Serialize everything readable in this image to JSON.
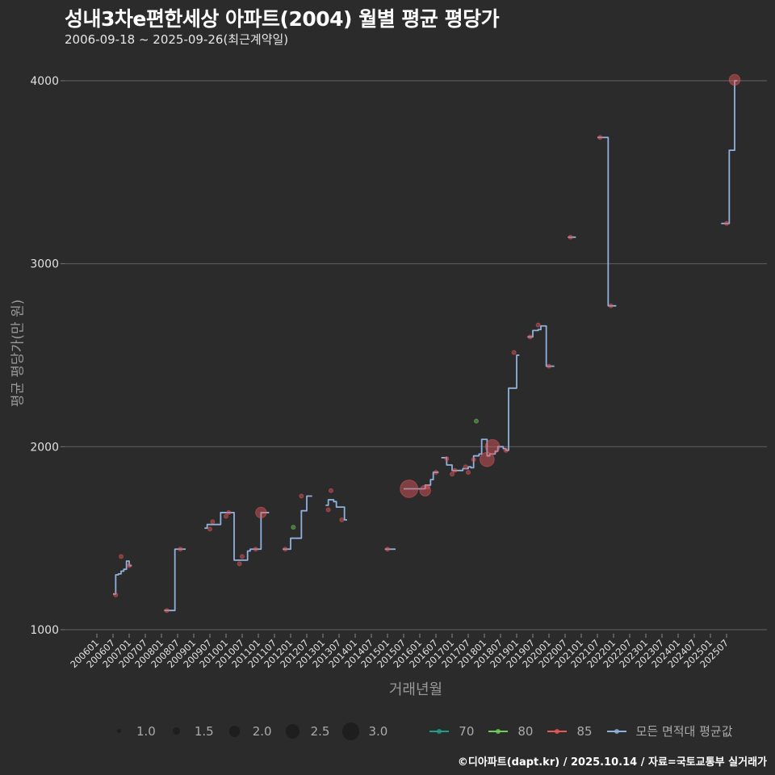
{
  "header": {
    "title": "성내3차e편한세상 아파트(2004) 월별 평균 평당가",
    "subtitle": "2006-09-18 ~ 2025-09-26(최근계약일)"
  },
  "footer": {
    "credit": "©디아파트(dapt.kr) / 2025.10.14 / 자료=국토교통부 실거래가"
  },
  "chart_data": {
    "type": "line",
    "title": "성내3차e편한세상 아파트(2004) 월별 평균 평당가",
    "subtitle": "2006-09-18 ~ 2025-09-26(최근계약일)",
    "xlabel": "거래년월",
    "ylabel": "평균 평당가(만 원)",
    "ylim": [
      1000,
      4000
    ],
    "yticks": [
      1000,
      2000,
      3000,
      4000
    ],
    "xticks": [
      "200601",
      "200607",
      "200701",
      "200707",
      "200801",
      "200807",
      "200901",
      "200907",
      "201001",
      "201007",
      "201101",
      "201107",
      "201201",
      "201207",
      "201301",
      "201307",
      "201401",
      "201407",
      "201501",
      "201507",
      "201601",
      "201607",
      "201701",
      "201707",
      "201801",
      "201807",
      "201901",
      "201907",
      "202001",
      "202007",
      "202101",
      "202107",
      "202201",
      "202207",
      "202301",
      "202307",
      "202401",
      "202407",
      "202501",
      "202507"
    ],
    "grid": "horizontal",
    "legend_position": "bottom",
    "size_legend": {
      "title": "",
      "values": [
        "1.0",
        "1.5",
        "2.0",
        "2.5",
        "3.0"
      ]
    },
    "color_legend": [
      {
        "name": "70",
        "color": "#1f9e89"
      },
      {
        "name": "80",
        "color": "#6ece58"
      },
      {
        "name": "85",
        "color": "#e8585a"
      },
      {
        "name": "모든 면적대 평균값",
        "color": "#8fb1dc"
      }
    ],
    "average_series": {
      "name": "모든 면적대 평균값",
      "segments": [
        [
          [
            6,
            1195
          ],
          [
            7,
            1300
          ],
          [
            8,
            1305
          ],
          [
            9,
            1320
          ],
          [
            10,
            1330
          ],
          [
            11,
            1375
          ],
          [
            12,
            1350
          ],
          [
            13,
            1350
          ]
        ],
        [
          [
            25,
            1105
          ],
          [
            28,
            1105
          ],
          [
            29,
            1440
          ],
          [
            33,
            1440
          ]
        ],
        [
          [
            40,
            1555
          ],
          [
            41,
            1575
          ],
          [
            43,
            1575
          ],
          [
            46,
            1640
          ],
          [
            49,
            1640
          ],
          [
            51,
            1380
          ],
          [
            54,
            1380
          ],
          [
            56,
            1430
          ],
          [
            57,
            1440
          ],
          [
            59,
            1440
          ],
          [
            61,
            1640
          ],
          [
            64,
            1640
          ]
        ],
        [
          [
            69,
            1440
          ],
          [
            71,
            1440
          ],
          [
            72,
            1500
          ],
          [
            75,
            1500
          ],
          [
            76,
            1650
          ],
          [
            77,
            1650
          ],
          [
            78,
            1730
          ],
          [
            80,
            1730
          ]
        ],
        [
          [
            85,
            1680
          ],
          [
            86,
            1710
          ],
          [
            88,
            1700
          ],
          [
            89,
            1670
          ],
          [
            91,
            1670
          ],
          [
            92,
            1600
          ],
          [
            93,
            1600
          ]
        ],
        [
          [
            107,
            1440
          ],
          [
            111,
            1440
          ]
        ],
        [
          [
            114,
            1770
          ],
          [
            121,
            1770
          ],
          [
            122,
            1790
          ],
          [
            124,
            1820
          ],
          [
            125,
            1860
          ],
          [
            127,
            1860
          ]
        ],
        [
          [
            128,
            1940
          ],
          [
            130,
            1900
          ],
          [
            132,
            1870
          ],
          [
            134,
            1870
          ],
          [
            136,
            1880
          ],
          [
            138,
            1890
          ],
          [
            139,
            1885
          ],
          [
            140,
            1950
          ],
          [
            142,
            1960
          ],
          [
            143,
            2040
          ],
          [
            145,
            1950
          ],
          [
            146,
            1960
          ],
          [
            148,
            1975
          ],
          [
            149,
            2000
          ],
          [
            151,
            1990
          ],
          [
            152,
            1980
          ],
          [
            153,
            2320
          ],
          [
            155,
            2320
          ],
          [
            156,
            2500
          ],
          [
            157,
            2500
          ]
        ],
        [
          [
            160,
            2600
          ],
          [
            162,
            2635
          ],
          [
            164,
            2640
          ],
          [
            165,
            2660
          ],
          [
            167,
            2440
          ],
          [
            170,
            2440
          ]
        ],
        [
          [
            175,
            3145
          ],
          [
            178,
            3145
          ]
        ],
        [
          [
            186,
            3690
          ],
          [
            189,
            3690
          ],
          [
            190,
            2770
          ],
          [
            193,
            2770
          ]
        ],
        [
          [
            232,
            3220
          ],
          [
            234,
            3220
          ],
          [
            235,
            3620
          ],
          [
            236,
            3620
          ],
          [
            237,
            4000
          ],
          [
            238,
            4000
          ]
        ]
      ]
    },
    "points": [
      {
        "m": 7,
        "v": 1190,
        "size": 1.0,
        "type": "85"
      },
      {
        "m": 9,
        "v": 1400,
        "size": 1.0,
        "type": "85"
      },
      {
        "m": 12,
        "v": 1350,
        "size": 1.0,
        "type": "85"
      },
      {
        "m": 26,
        "v": 1105,
        "size": 1.0,
        "type": "85"
      },
      {
        "m": 31,
        "v": 1440,
        "size": 1.0,
        "type": "85"
      },
      {
        "m": 42,
        "v": 1550,
        "size": 1.0,
        "type": "85"
      },
      {
        "m": 43,
        "v": 1590,
        "size": 1.0,
        "type": "85"
      },
      {
        "m": 48,
        "v": 1620,
        "size": 1.0,
        "type": "85"
      },
      {
        "m": 49,
        "v": 1640,
        "size": 1.0,
        "type": "85"
      },
      {
        "m": 53,
        "v": 1360,
        "size": 1.0,
        "type": "85"
      },
      {
        "m": 54,
        "v": 1400,
        "size": 1.0,
        "type": "85"
      },
      {
        "m": 59,
        "v": 1440,
        "size": 1.0,
        "type": "85"
      },
      {
        "m": 61,
        "v": 1640,
        "size": 2.0,
        "type": "85"
      },
      {
        "m": 70,
        "v": 1440,
        "size": 1.0,
        "type": "85"
      },
      {
        "m": 73,
        "v": 1560,
        "size": 1.0,
        "type": "80"
      },
      {
        "m": 76,
        "v": 1730,
        "size": 1.0,
        "type": "85"
      },
      {
        "m": 86,
        "v": 1655,
        "size": 1.0,
        "type": "85"
      },
      {
        "m": 87,
        "v": 1760,
        "size": 1.0,
        "type": "85"
      },
      {
        "m": 91,
        "v": 1600,
        "size": 1.0,
        "type": "85"
      },
      {
        "m": 108,
        "v": 1440,
        "size": 1.0,
        "type": "85"
      },
      {
        "m": 116,
        "v": 1770,
        "size": 3.0,
        "type": "85"
      },
      {
        "m": 122,
        "v": 1760,
        "size": 2.0,
        "type": "85"
      },
      {
        "m": 123,
        "v": 1780,
        "size": 1.0,
        "type": "85"
      },
      {
        "m": 126,
        "v": 1860,
        "size": 1.0,
        "type": "85"
      },
      {
        "m": 130,
        "v": 1935,
        "size": 1.0,
        "type": "85"
      },
      {
        "m": 132,
        "v": 1850,
        "size": 1.0,
        "type": "85"
      },
      {
        "m": 133,
        "v": 1870,
        "size": 1.0,
        "type": "85"
      },
      {
        "m": 137,
        "v": 1890,
        "size": 1.0,
        "type": "85"
      },
      {
        "m": 138,
        "v": 1860,
        "size": 1.0,
        "type": "85"
      },
      {
        "m": 140,
        "v": 1930,
        "size": 1.0,
        "type": "85"
      },
      {
        "m": 141,
        "v": 2140,
        "size": 1.0,
        "type": "80"
      },
      {
        "m": 145,
        "v": 1930,
        "size": 2.5,
        "type": "85"
      },
      {
        "m": 147,
        "v": 2000,
        "size": 2.5,
        "type": "85"
      },
      {
        "m": 152,
        "v": 1980,
        "size": 1.0,
        "type": "85"
      },
      {
        "m": 155,
        "v": 2515,
        "size": 1.0,
        "type": "85"
      },
      {
        "m": 161,
        "v": 2600,
        "size": 1.0,
        "type": "85"
      },
      {
        "m": 164,
        "v": 2665,
        "size": 1.0,
        "type": "85"
      },
      {
        "m": 168,
        "v": 2440,
        "size": 1.0,
        "type": "85"
      },
      {
        "m": 176,
        "v": 3145,
        "size": 1.0,
        "type": "85"
      },
      {
        "m": 187,
        "v": 3690,
        "size": 1.0,
        "type": "85"
      },
      {
        "m": 191,
        "v": 2770,
        "size": 1.0,
        "type": "85"
      },
      {
        "m": 234,
        "v": 3220,
        "size": 1.0,
        "type": "85"
      },
      {
        "m": 237,
        "v": 4005,
        "size": 2.0,
        "type": "85"
      }
    ]
  },
  "axes": {
    "ylabel": "평균 평당가(만 원)",
    "xlabel": "거래년월"
  }
}
